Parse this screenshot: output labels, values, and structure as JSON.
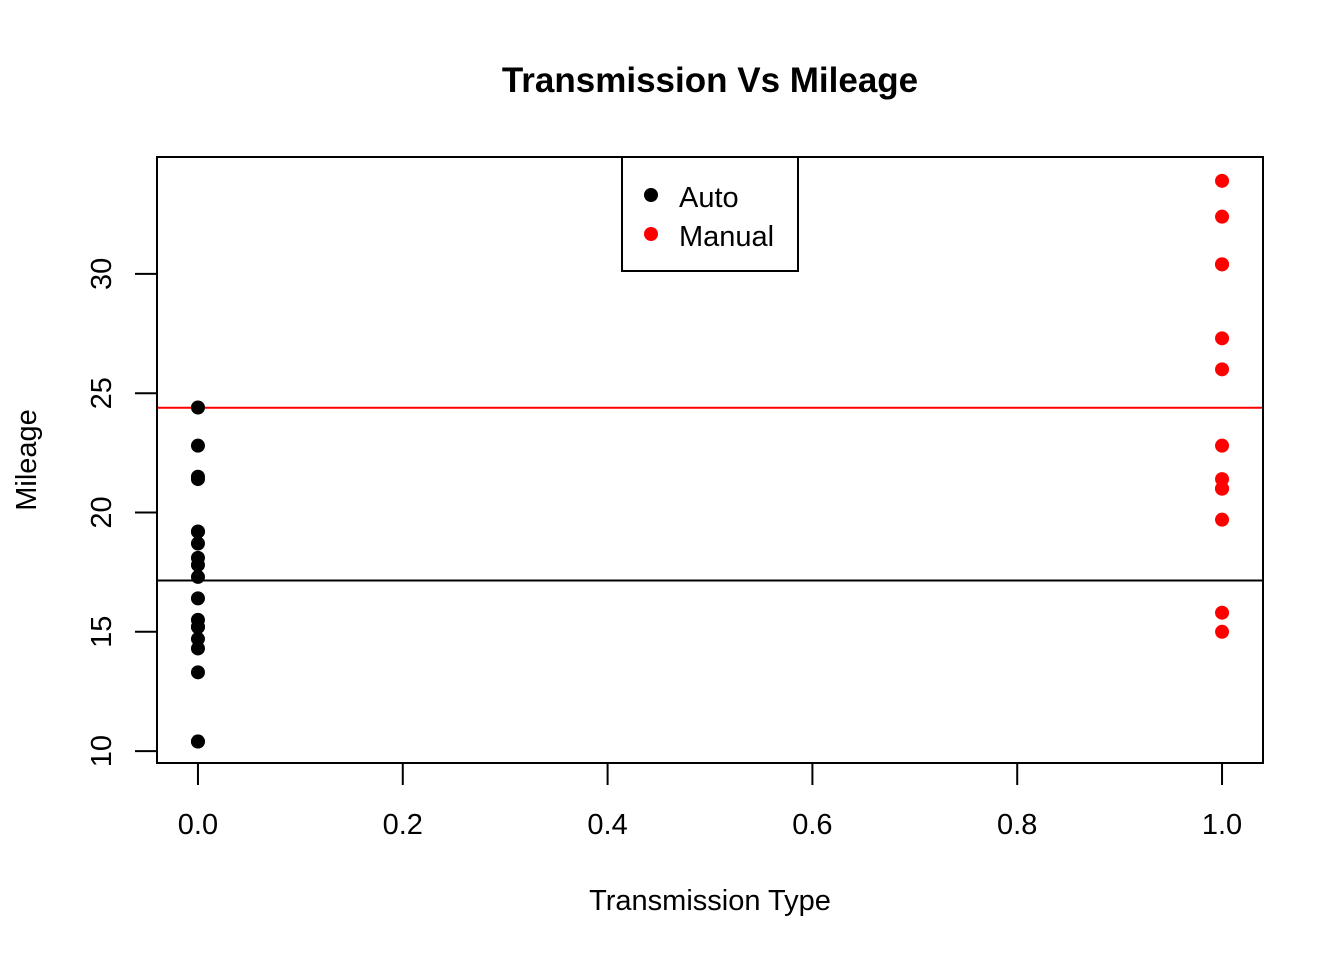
{
  "chart_data": {
    "type": "scatter",
    "title": "Transmission Vs Mileage",
    "xlabel": "Transmission Type",
    "ylabel": "Mileage",
    "xlim": [
      -0.04,
      1.04
    ],
    "ylim": [
      9.5,
      34.9
    ],
    "x_ticks": [
      "0.0",
      "0.2",
      "0.4",
      "0.6",
      "0.8",
      "1.0"
    ],
    "x_tick_values": [
      0,
      0.2,
      0.4,
      0.6,
      0.8,
      1.0
    ],
    "y_ticks": [
      "10",
      "15",
      "20",
      "25",
      "30"
    ],
    "y_tick_values": [
      10,
      15,
      20,
      25,
      30
    ],
    "grid": false,
    "legend_position": "top-center",
    "series": [
      {
        "name": "Auto",
        "color": "#000000",
        "x": [
          0,
          0,
          0,
          0,
          0,
          0,
          0,
          0,
          0,
          0,
          0,
          0,
          0,
          0,
          0,
          0,
          0,
          0,
          0
        ],
        "y": [
          21.4,
          18.7,
          18.1,
          14.3,
          24.4,
          22.8,
          19.2,
          17.8,
          16.4,
          17.3,
          15.2,
          10.4,
          10.4,
          14.7,
          21.5,
          15.5,
          15.2,
          13.3,
          19.2
        ]
      },
      {
        "name": "Manual",
        "color": "#ff0000",
        "x": [
          1,
          1,
          1,
          1,
          1,
          1,
          1,
          1,
          1,
          1,
          1,
          1,
          1
        ],
        "y": [
          21.0,
          21.0,
          22.8,
          32.4,
          30.4,
          33.9,
          27.3,
          26.0,
          30.4,
          15.8,
          19.7,
          15.0,
          21.4
        ]
      }
    ],
    "hlines": [
      {
        "y": 17.147,
        "color": "#000000"
      },
      {
        "y": 24.392,
        "color": "#ff0000"
      }
    ]
  }
}
